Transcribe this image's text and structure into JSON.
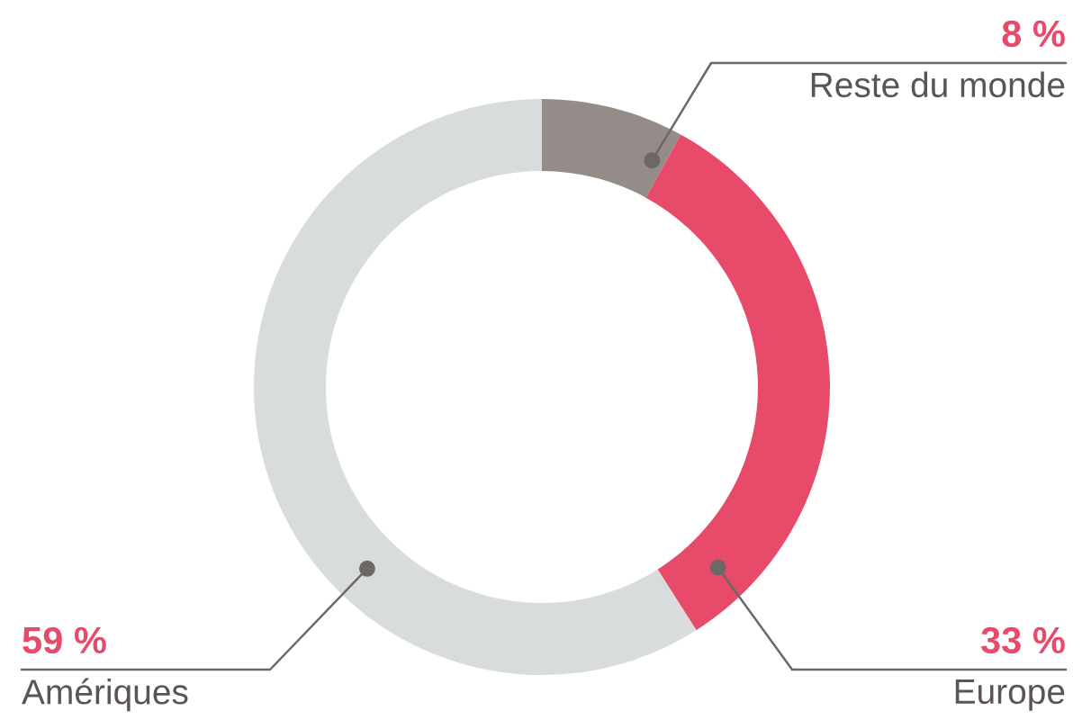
{
  "chart_data": {
    "type": "donut",
    "categories": [
      "Reste du monde",
      "Europe",
      "Amériques"
    ],
    "values": [
      8,
      33,
      59
    ],
    "colors": [
      "#948c88",
      "#e84a6a",
      "#d9dcdd"
    ],
    "value_labels": [
      "8 %",
      "33 %",
      "59 %"
    ],
    "legend": false
  }
}
